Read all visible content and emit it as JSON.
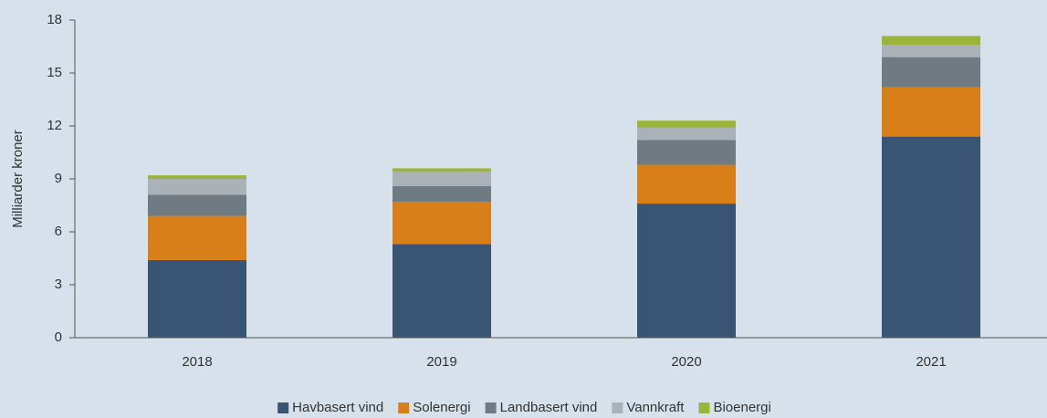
{
  "chart_data": {
    "type": "stacked_bar",
    "ylabel": "Milliarder kroner",
    "categories": [
      "2018",
      "2019",
      "2020",
      "2021"
    ],
    "series": [
      {
        "name": "Havbasert vind",
        "color": "#3a5574",
        "values": [
          4.4,
          5.3,
          7.6,
          11.4
        ]
      },
      {
        "name": "Solenergi",
        "color": "#d97f1a",
        "values": [
          2.5,
          2.4,
          2.2,
          2.8
        ]
      },
      {
        "name": "Landbasert vind",
        "color": "#6f7a82",
        "values": [
          1.2,
          0.9,
          1.4,
          1.7
        ]
      },
      {
        "name": "Vannkraft",
        "color": "#aab2b8",
        "values": [
          0.9,
          0.8,
          0.7,
          0.7
        ]
      },
      {
        "name": "Bioenergi",
        "color": "#9db43a",
        "values": [
          0.2,
          0.2,
          0.4,
          0.5
        ]
      }
    ],
    "ylim": [
      0,
      18
    ],
    "yticks": [
      0,
      3,
      6,
      9,
      12,
      15,
      18
    ],
    "legend": "bottom"
  }
}
